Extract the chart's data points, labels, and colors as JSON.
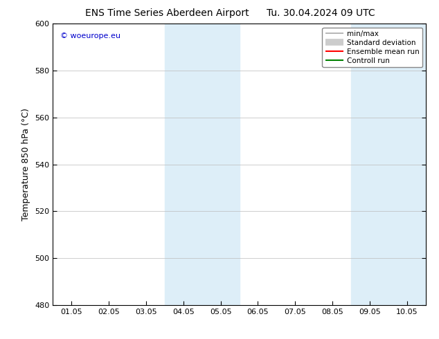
{
  "title_left": "ENS Time Series Aberdeen Airport",
  "title_right": "Tu. 30.04.2024 09 UTC",
  "ylabel": "Temperature 850 hPa (°C)",
  "ylim": [
    480,
    600
  ],
  "yticks": [
    480,
    500,
    520,
    540,
    560,
    580,
    600
  ],
  "xtick_labels": [
    "01.05",
    "02.05",
    "03.05",
    "04.05",
    "05.05",
    "06.05",
    "07.05",
    "08.05",
    "09.05",
    "10.05"
  ],
  "shaded_bands": [
    {
      "xstart": 3,
      "xend": 4
    },
    {
      "xstart": 4,
      "xend": 5
    },
    {
      "xstart": 8,
      "xend": 9
    },
    {
      "xstart": 9,
      "xend": 10
    }
  ],
  "shade_color": "#ddeef8",
  "watermark": "© woeurope.eu",
  "watermark_color": "#0000cc",
  "legend_entries": [
    {
      "label": "min/max",
      "color": "#aaaaaa",
      "lw": 1.2,
      "type": "line_caps"
    },
    {
      "label": "Standard deviation",
      "color": "#cccccc",
      "lw": 7,
      "type": "line"
    },
    {
      "label": "Ensemble mean run",
      "color": "red",
      "lw": 1.5,
      "type": "line"
    },
    {
      "label": "Controll run",
      "color": "green",
      "lw": 1.5,
      "type": "line"
    }
  ],
  "background_color": "#ffffff",
  "title_fontsize": 10,
  "tick_fontsize": 8,
  "ylabel_fontsize": 9
}
